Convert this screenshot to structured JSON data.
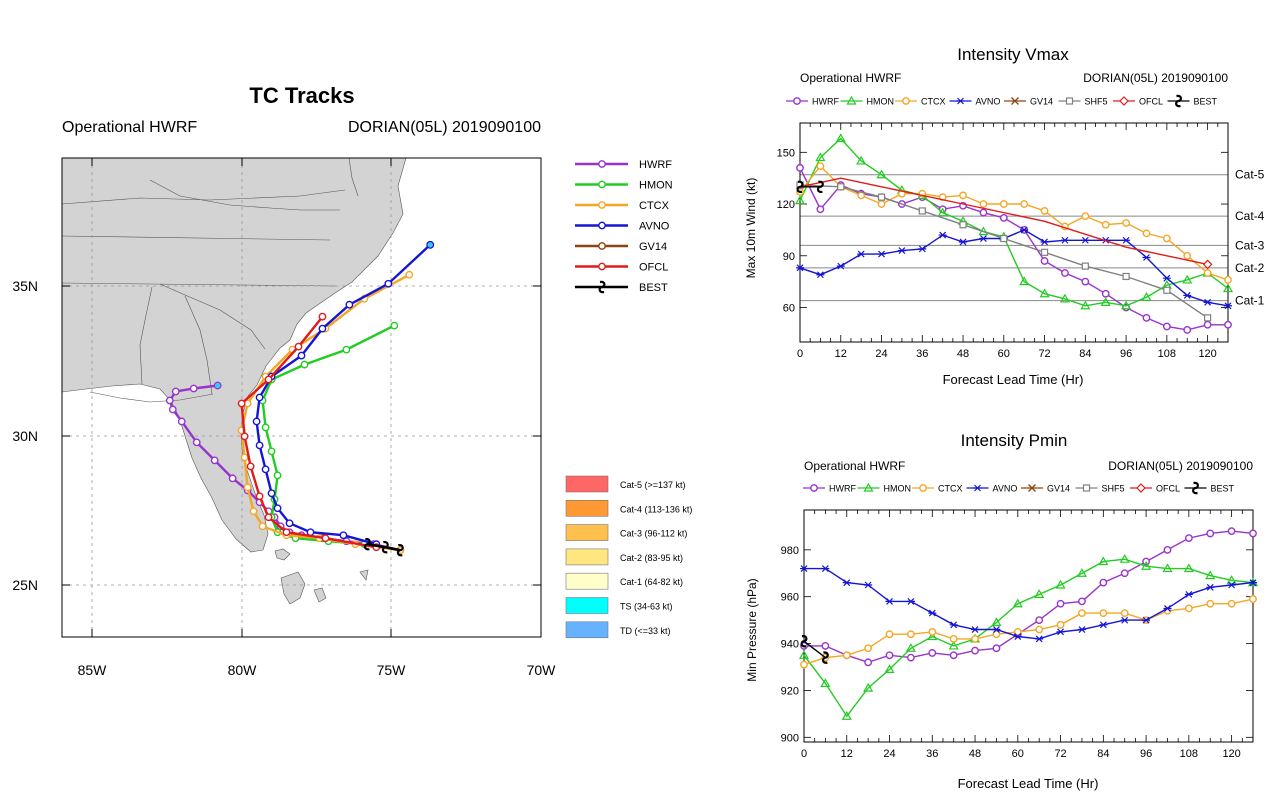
{
  "tracks": {
    "title": "TC Tracks",
    "left_sub": "Operational HWRF",
    "right_sub": "DORIAN(05L) 2019090100",
    "lon_ticks": [
      "85W",
      "80W",
      "75W",
      "70W"
    ],
    "lat_ticks": [
      "35N",
      "30N",
      "25N"
    ],
    "legend": [
      {
        "name": "HWRF",
        "color": "#9933cc",
        "mark": "circle"
      },
      {
        "name": "HMON",
        "color": "#22cc22",
        "mark": "circle"
      },
      {
        "name": "CTCX",
        "color": "#f5a623",
        "mark": "circle"
      },
      {
        "name": "AVNO",
        "color": "#1515d6",
        "mark": "circle"
      },
      {
        "name": "GV14",
        "color": "#8b4513",
        "mark": "circle"
      },
      {
        "name": "OFCL",
        "color": "#e01b1b",
        "mark": "circle"
      },
      {
        "name": "BEST",
        "color": "#000000",
        "mark": "hurricane"
      }
    ],
    "cat_legend": [
      {
        "label": "Cat-5 (>=137 kt)",
        "color": "#ff6666"
      },
      {
        "label": "Cat-4 (113-136 kt)",
        "color": "#ff9933"
      },
      {
        "label": "Cat-3 (96-112 kt)",
        "color": "#ffc04d"
      },
      {
        "label": "Cat-2 (83-95 kt)",
        "color": "#ffe680"
      },
      {
        "label": "Cat-1 (64-82 kt)",
        "color": "#ffffcc"
      },
      {
        "label": "TS (34-63 kt)",
        "color": "#00ffff"
      },
      {
        "label": "TD (<=33 kt)",
        "color": "#66b2ff"
      }
    ],
    "map_range": {
      "lon": [
        -86,
        -70
      ],
      "lat": [
        23.3,
        39.3
      ]
    }
  },
  "chart_data": [
    {
      "type": "line",
      "title": "TC Tracks",
      "xlabel": "",
      "ylabel": "",
      "xlim": [
        -86,
        -70
      ],
      "ylim": [
        23.3,
        39.3
      ],
      "series": [
        {
          "name": "HWRF",
          "color": "#9933cc",
          "points": [
            [
              -74.7,
              26.2
            ],
            [
              -75.6,
              26.4
            ],
            [
              -76.5,
              26.5
            ],
            [
              -77.3,
              26.6
            ],
            [
              -78.0,
              26.7
            ],
            [
              -78.4,
              26.8
            ],
            [
              -78.7,
              27.0
            ],
            [
              -78.9,
              27.3
            ],
            [
              -79.1,
              27.5
            ],
            [
              -79.4,
              27.8
            ],
            [
              -79.8,
              28.2
            ],
            [
              -80.3,
              28.6
            ],
            [
              -80.9,
              29.2
            ],
            [
              -81.5,
              29.8
            ],
            [
              -82.0,
              30.5
            ],
            [
              -82.3,
              30.9
            ],
            [
              -82.4,
              31.2
            ],
            [
              -82.2,
              31.5
            ],
            [
              -81.6,
              31.6
            ],
            [
              -80.8,
              31.7
            ]
          ]
        },
        {
          "name": "HMON",
          "color": "#22cc22",
          "points": [
            [
              -74.7,
              26.2
            ],
            [
              -75.9,
              26.4
            ],
            [
              -77.1,
              26.5
            ],
            [
              -78.2,
              26.6
            ],
            [
              -78.8,
              26.8
            ],
            [
              -79.0,
              27.3
            ],
            [
              -78.9,
              27.9
            ],
            [
              -78.8,
              28.7
            ],
            [
              -79.0,
              29.5
            ],
            [
              -79.2,
              30.3
            ],
            [
              -79.3,
              31.2
            ],
            [
              -79.0,
              31.9
            ],
            [
              -77.9,
              32.4
            ],
            [
              -76.5,
              32.9
            ],
            [
              -74.9,
              33.7
            ]
          ]
        },
        {
          "name": "CTCX",
          "color": "#f5a623",
          "points": [
            [
              -74.7,
              26.2
            ],
            [
              -76.2,
              26.4
            ],
            [
              -77.4,
              26.6
            ],
            [
              -78.5,
              26.7
            ],
            [
              -79.3,
              27.0
            ],
            [
              -79.6,
              27.5
            ],
            [
              -79.8,
              28.3
            ],
            [
              -79.9,
              29.3
            ],
            [
              -80.0,
              30.2
            ],
            [
              -79.8,
              31.1
            ],
            [
              -79.2,
              32.0
            ],
            [
              -78.3,
              32.9
            ],
            [
              -77.2,
              33.6
            ],
            [
              -75.9,
              34.6
            ],
            [
              -74.4,
              35.4
            ]
          ]
        },
        {
          "name": "AVNO",
          "color": "#1515d6",
          "points": [
            [
              -75.5,
              26.4
            ],
            [
              -76.6,
              26.7
            ],
            [
              -77.7,
              26.8
            ],
            [
              -78.4,
              27.1
            ],
            [
              -78.8,
              27.6
            ],
            [
              -79.0,
              28.1
            ],
            [
              -79.2,
              28.9
            ],
            [
              -79.4,
              29.7
            ],
            [
              -79.5,
              30.5
            ],
            [
              -79.4,
              31.3
            ],
            [
              -79.0,
              32.0
            ],
            [
              -78.0,
              32.7
            ],
            [
              -77.3,
              33.6
            ],
            [
              -76.4,
              34.4
            ],
            [
              -75.1,
              35.1
            ],
            [
              -73.7,
              36.4
            ]
          ]
        },
        {
          "name": "OFCL",
          "color": "#e01b1b",
          "points": [
            [
              -75.5,
              26.3
            ],
            [
              -77.2,
              26.6
            ],
            [
              -78.5,
              26.8
            ],
            [
              -79.1,
              27.3
            ],
            [
              -79.4,
              28.0
            ],
            [
              -79.7,
              29.0
            ],
            [
              -79.9,
              30.0
            ],
            [
              -80.0,
              31.1
            ],
            [
              -79.1,
              31.9
            ],
            [
              -78.1,
              33.0
            ],
            [
              -77.3,
              34.0
            ]
          ]
        },
        {
          "name": "BEST",
          "color": "#000000",
          "points": [
            [
              -75.8,
              26.4
            ],
            [
              -75.2,
              26.3
            ],
            [
              -74.7,
              26.2
            ]
          ]
        }
      ]
    },
    {
      "type": "line",
      "title": "Intensity Vmax",
      "xlabel": "Forecast Lead Time (Hr)",
      "ylabel": "Max 10m Wind (kt)",
      "xlim": [
        0,
        126
      ],
      "ylim": [
        40,
        167
      ],
      "xticks": [
        0,
        12,
        24,
        36,
        48,
        60,
        72,
        84,
        96,
        108,
        120
      ],
      "yticks": [
        60,
        90,
        120,
        150
      ],
      "reference_lines": [
        {
          "label": "Cat-5",
          "value": 137
        },
        {
          "label": "Cat-4",
          "value": 113
        },
        {
          "label": "Cat-3",
          "value": 96
        },
        {
          "label": "Cat-2",
          "value": 83
        },
        {
          "label": "Cat-1",
          "value": 64
        }
      ],
      "series": [
        {
          "name": "HWRF",
          "color": "#9933cc",
          "marker": "circle",
          "x": [
            0,
            6,
            12,
            18,
            24,
            30,
            36,
            42,
            48,
            54,
            60,
            66,
            72,
            78,
            84,
            90,
            96,
            102,
            108,
            114,
            120,
            126
          ],
          "y": [
            141,
            117,
            131,
            126,
            124,
            120,
            124,
            117,
            119,
            115,
            112,
            105,
            87,
            80,
            75,
            68,
            60,
            54,
            49,
            47,
            50,
            50
          ]
        },
        {
          "name": "HMON",
          "color": "#22cc22",
          "marker": "triangle",
          "x": [
            0,
            6,
            12,
            18,
            24,
            30,
            36,
            42,
            48,
            54,
            60,
            66,
            72,
            78,
            84,
            90,
            96,
            102,
            108,
            114,
            120,
            126
          ],
          "y": [
            122,
            147,
            158,
            145,
            137,
            128,
            125,
            115,
            110,
            104,
            101,
            75,
            68,
            65,
            61,
            63,
            61,
            66,
            73,
            76,
            80,
            71
          ]
        },
        {
          "name": "CTCX",
          "color": "#f5a623",
          "marker": "circle",
          "x": [
            0,
            6,
            12,
            18,
            24,
            30,
            36,
            42,
            48,
            54,
            60,
            66,
            72,
            78,
            84,
            90,
            96,
            102,
            108,
            114,
            120,
            126
          ],
          "y": [
            127,
            142,
            130,
            125,
            120,
            126,
            126,
            124,
            125,
            120,
            120,
            120,
            116,
            107,
            113,
            108,
            109,
            103,
            100,
            90,
            80,
            76
          ]
        },
        {
          "name": "AVNO",
          "color": "#1515d6",
          "marker": "asterisk",
          "x": [
            0,
            6,
            12,
            18,
            24,
            30,
            36,
            42,
            48,
            54,
            60,
            66,
            72,
            78,
            84,
            90,
            96,
            102,
            108,
            114,
            120,
            126
          ],
          "y": [
            83,
            79,
            84,
            91,
            91,
            93,
            94,
            102,
            98,
            100,
            100,
            105,
            98,
            99,
            99,
            99,
            99,
            89,
            77,
            67,
            63,
            61
          ]
        },
        {
          "name": "SHF5",
          "color": "#808080",
          "marker": "square",
          "x": [
            0,
            12,
            24,
            36,
            48,
            60,
            72,
            84,
            96,
            108,
            120
          ],
          "y": [
            131,
            130,
            124,
            116,
            108,
            100,
            92,
            84,
            78,
            70,
            54
          ]
        },
        {
          "name": "OFCL",
          "color": "#e01b1b",
          "marker": "diamond",
          "x": [
            0,
            12,
            24,
            36,
            48,
            72,
            96,
            120
          ],
          "y": [
            130,
            135,
            130,
            125,
            120,
            110,
            95,
            85
          ]
        },
        {
          "name": "BEST",
          "color": "#000000",
          "marker": "hurricane",
          "x": [
            0,
            6
          ],
          "y": [
            130,
            130
          ]
        }
      ],
      "legend_names": [
        "HWRF",
        "HMON",
        "CTCX",
        "AVNO",
        "GV14",
        "SHF5",
        "OFCL",
        "BEST"
      ],
      "left_sub": "Operational HWRF",
      "right_sub": "DORIAN(05L) 2019090100"
    },
    {
      "type": "line",
      "title": "Intensity Pmin",
      "xlabel": "Forecast Lead Time (Hr)",
      "ylabel": "Min Pressure (hPa)",
      "xlim": [
        0,
        126
      ],
      "ylim": [
        898,
        997
      ],
      "xticks": [
        0,
        12,
        24,
        36,
        48,
        60,
        72,
        84,
        96,
        108,
        120
      ],
      "yticks": [
        900,
        920,
        940,
        960,
        980
      ],
      "series": [
        {
          "name": "HWRF",
          "color": "#9933cc",
          "marker": "circle",
          "x": [
            0,
            6,
            12,
            18,
            24,
            30,
            36,
            42,
            48,
            54,
            60,
            66,
            72,
            78,
            84,
            90,
            96,
            102,
            108,
            114,
            120,
            126
          ],
          "y": [
            939,
            939,
            935,
            932,
            935,
            934,
            936,
            935,
            937,
            938,
            944,
            950,
            957,
            958,
            966,
            970,
            975,
            980,
            985,
            987,
            988,
            987
          ]
        },
        {
          "name": "HMON",
          "color": "#22cc22",
          "marker": "triangle",
          "x": [
            0,
            6,
            12,
            18,
            24,
            30,
            36,
            42,
            48,
            54,
            60,
            66,
            72,
            78,
            84,
            90,
            96,
            102,
            108,
            114,
            120,
            126
          ],
          "y": [
            935,
            923,
            909,
            921,
            929,
            938,
            943,
            939,
            942,
            949,
            957,
            961,
            965,
            970,
            975,
            976,
            973,
            972,
            972,
            969,
            967,
            966
          ]
        },
        {
          "name": "CTCX",
          "color": "#f5a623",
          "marker": "circle",
          "x": [
            0,
            6,
            12,
            18,
            24,
            30,
            36,
            42,
            48,
            54,
            60,
            66,
            72,
            78,
            84,
            90,
            96,
            102,
            108,
            114,
            120,
            126
          ],
          "y": [
            931,
            934,
            935,
            938,
            944,
            944,
            945,
            942,
            942,
            944,
            945,
            946,
            948,
            953,
            953,
            953,
            950,
            954,
            955,
            957,
            957,
            959
          ]
        },
        {
          "name": "AVNO",
          "color": "#1515d6",
          "marker": "asterisk",
          "x": [
            0,
            6,
            12,
            18,
            24,
            30,
            36,
            42,
            48,
            54,
            60,
            66,
            72,
            78,
            84,
            90,
            96,
            102,
            108,
            114,
            120,
            126
          ],
          "y": [
            972,
            972,
            966,
            965,
            958,
            958,
            953,
            948,
            946,
            946,
            943,
            942,
            945,
            946,
            948,
            950,
            950,
            955,
            961,
            964,
            965,
            966
          ]
        },
        {
          "name": "BEST",
          "color": "#000000",
          "marker": "hurricane",
          "x": [
            0,
            6
          ],
          "y": [
            941,
            934
          ]
        }
      ],
      "legend_names": [
        "HWRF",
        "HMON",
        "CTCX",
        "AVNO",
        "GV14",
        "SHF5",
        "OFCL",
        "BEST"
      ],
      "left_sub": "Operational HWRF",
      "right_sub": "DORIAN(05L) 2019090100"
    }
  ]
}
